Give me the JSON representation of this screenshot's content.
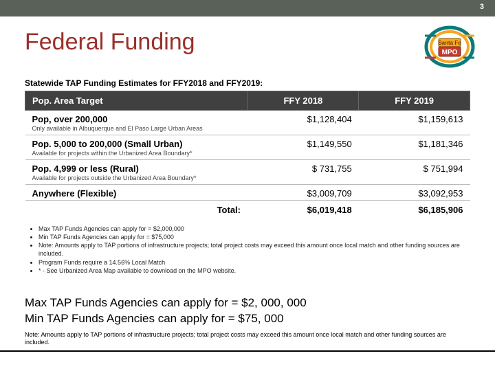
{
  "page_number": "3",
  "title": "Federal Funding",
  "logo": {
    "top_text": "Santa Fe",
    "bottom_text": "MPO",
    "top_bg": "#f5a623",
    "bottom_bg": "#c43c2f",
    "ring_outer": "#0a7a7a",
    "ring_inner": "#f5a623"
  },
  "table": {
    "caption": "Statewide TAP Funding Estimates for FFY2018 and FFY2019:",
    "header_bg": "#404040",
    "header_fg": "#ffffff",
    "columns": [
      "Pop. Area Target",
      "FFY 2018",
      "FFY 2019"
    ],
    "rows": [
      {
        "label": "Pop, over 200,000",
        "sub": "Only available in Albuquerque and El Paso Large Urban Areas",
        "c1": "$1,128,404",
        "c2": "$1,159,613"
      },
      {
        "label": "Pop. 5,000 to 200,000 (Small Urban)",
        "sub": "Available for projects within the Urbanized Area Boundary*",
        "c1": "$1,149,550",
        "c2": "$1,181,346"
      },
      {
        "label": "Pop. 4,999 or less (Rural)",
        "sub": "Available for projects outside the Urbanized Area Boundary*",
        "c1": "$   731,755",
        "c2": "$   751,994"
      },
      {
        "label": "Anywhere (Flexible)",
        "sub": "",
        "c1": "$3,009,709",
        "c2": "$3,092,953"
      }
    ],
    "total_label": "Total:",
    "total_c1": "$6,019,418",
    "total_c2": "$6,185,906"
  },
  "bullets": [
    "Max TAP Funds Agencies can apply for = $2,000,000",
    "Min TAP Funds Agencies can apply for = $75,000",
    "Note: Amounts apply to TAP portions of infrastructure projects; total project costs may exceed this amount once local match and other funding sources are included.",
    "Program Funds require a 14.56% Local Match",
    "* - See Urbanized Area Map available to download on the MPO website."
  ],
  "summary_lines": [
    "Max TAP Funds Agencies can apply for = $2, 000, 000",
    "Min TAP Funds Agencies can apply for = $75, 000"
  ],
  "footnote": "Note: Amounts apply to TAP portions of infrastructure projects; total project costs may exceed this amount once local match and other funding sources are included."
}
